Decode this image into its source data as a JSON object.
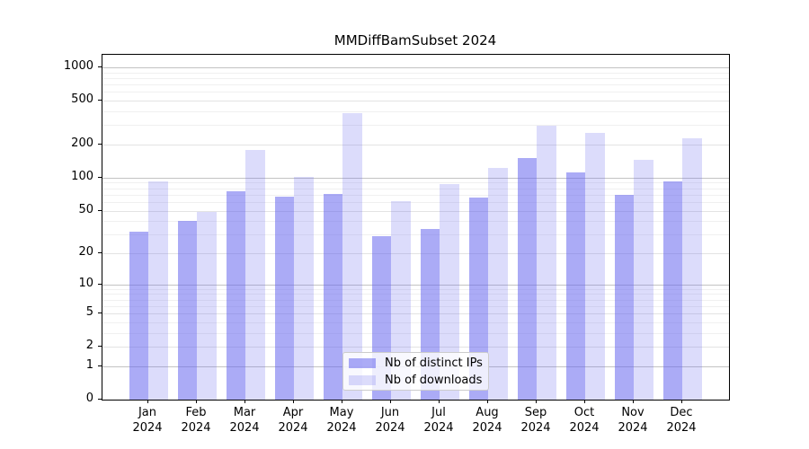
{
  "chart_data": {
    "type": "bar",
    "title": "MMDiffBamSubset 2024",
    "categories": [
      "Jan",
      "Feb",
      "Mar",
      "Apr",
      "May",
      "Jun",
      "Jul",
      "Aug",
      "Sep",
      "Oct",
      "Nov",
      "Dec"
    ],
    "x_tick_year": "2024",
    "series": [
      {
        "name": "Nb of distinct IPs",
        "color": "rgba(102,102,238,0.55)",
        "values": [
          32,
          40,
          75,
          67,
          71,
          29,
          34,
          66,
          150,
          111,
          70,
          92
        ]
      },
      {
        "name": "Nb of downloads",
        "color": "rgba(102,102,238,0.23)",
        "values": [
          92,
          49,
          178,
          101,
          385,
          61,
          88,
          123,
          297,
          255,
          146,
          228
        ]
      }
    ],
    "y_axis": {
      "scale": "log1p",
      "ticks": [
        0,
        1,
        2,
        5,
        10,
        20,
        50,
        100,
        200,
        500,
        1000
      ],
      "minor_ticks": [
        3,
        4,
        6,
        7,
        8,
        9,
        30,
        40,
        60,
        70,
        80,
        90,
        300,
        400,
        600,
        700,
        800,
        900
      ],
      "max": 1300
    },
    "legend": {
      "position": "lower-center-inside"
    },
    "grid": true,
    "xlabel": "",
    "ylabel": ""
  }
}
